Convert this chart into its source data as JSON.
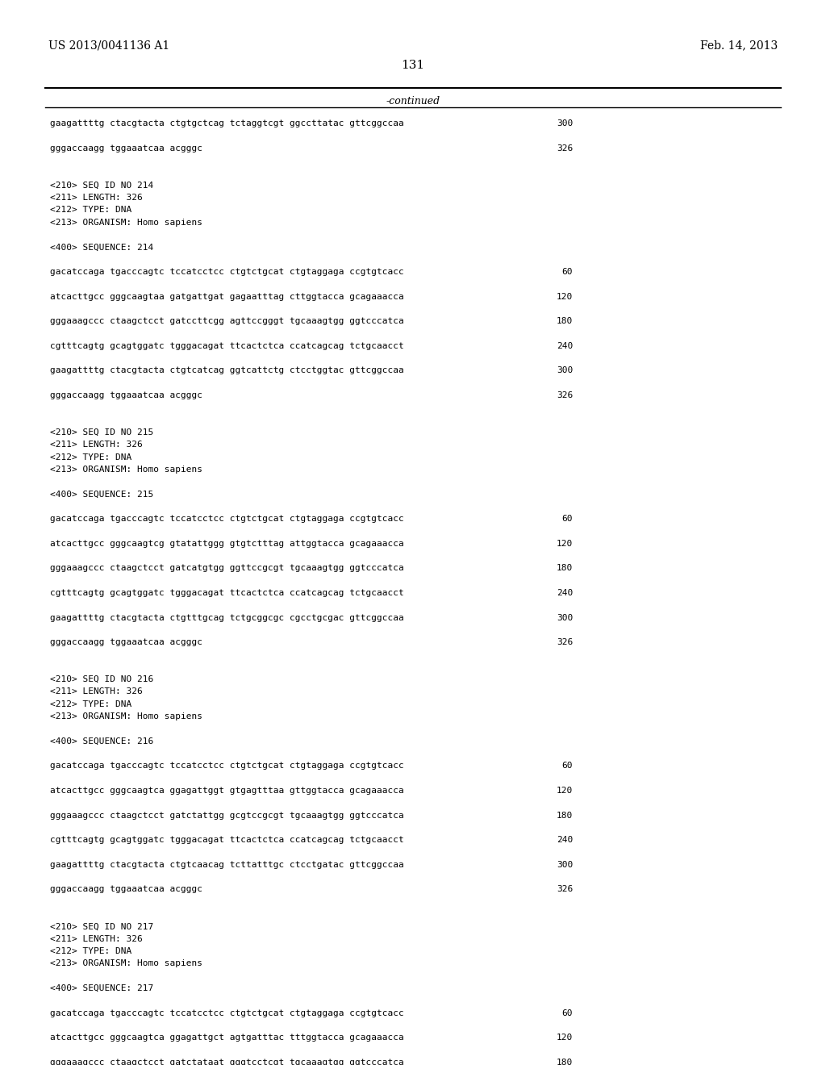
{
  "header_left": "US 2013/0041136 A1",
  "header_right": "Feb. 14, 2013",
  "page_number": "131",
  "continued_label": "-continued",
  "background_color": "#ffffff",
  "text_color": "#000000",
  "font_size": 8.5,
  "mono_font_size": 8.0,
  "lines": [
    {
      "text": "gaagattttg ctacgtacta ctgtgctcag tctaggtcgt ggccttatac gttcggccaa",
      "num": "300",
      "type": "seq"
    },
    {
      "text": "",
      "num": "",
      "type": "blank"
    },
    {
      "text": "gggaccaagg tggaaatcaa acgggc",
      "num": "326",
      "type": "seq"
    },
    {
      "text": "",
      "num": "",
      "type": "blank"
    },
    {
      "text": "",
      "num": "",
      "type": "blank"
    },
    {
      "text": "<210> SEQ ID NO 214",
      "num": "",
      "type": "meta"
    },
    {
      "text": "<211> LENGTH: 326",
      "num": "",
      "type": "meta"
    },
    {
      "text": "<212> TYPE: DNA",
      "num": "",
      "type": "meta"
    },
    {
      "text": "<213> ORGANISM: Homo sapiens",
      "num": "",
      "type": "meta"
    },
    {
      "text": "",
      "num": "",
      "type": "blank"
    },
    {
      "text": "<400> SEQUENCE: 214",
      "num": "",
      "type": "meta"
    },
    {
      "text": "",
      "num": "",
      "type": "blank"
    },
    {
      "text": "gacatccaga tgacccagtc tccatcctcc ctgtctgcat ctgtaggaga ccgtgtcacc",
      "num": "60",
      "type": "seq"
    },
    {
      "text": "",
      "num": "",
      "type": "blank"
    },
    {
      "text": "atcacttgcc gggcaagtaa gatgattgat gagaatttag cttggtacca gcagaaacca",
      "num": "120",
      "type": "seq"
    },
    {
      "text": "",
      "num": "",
      "type": "blank"
    },
    {
      "text": "gggaaagccc ctaagctcct gatccttcgg agttccgggt tgcaaagtgg ggtcccatca",
      "num": "180",
      "type": "seq"
    },
    {
      "text": "",
      "num": "",
      "type": "blank"
    },
    {
      "text": "cgtttcagtg gcagtggatc tgggacagat ttcactctca ccatcagcag tctgcaacct",
      "num": "240",
      "type": "seq"
    },
    {
      "text": "",
      "num": "",
      "type": "blank"
    },
    {
      "text": "gaagattttg ctacgtacta ctgtcatcag ggtcattctg ctcctggtac gttcggccaa",
      "num": "300",
      "type": "seq"
    },
    {
      "text": "",
      "num": "",
      "type": "blank"
    },
    {
      "text": "gggaccaagg tggaaatcaa acgggc",
      "num": "326",
      "type": "seq"
    },
    {
      "text": "",
      "num": "",
      "type": "blank"
    },
    {
      "text": "",
      "num": "",
      "type": "blank"
    },
    {
      "text": "<210> SEQ ID NO 215",
      "num": "",
      "type": "meta"
    },
    {
      "text": "<211> LENGTH: 326",
      "num": "",
      "type": "meta"
    },
    {
      "text": "<212> TYPE: DNA",
      "num": "",
      "type": "meta"
    },
    {
      "text": "<213> ORGANISM: Homo sapiens",
      "num": "",
      "type": "meta"
    },
    {
      "text": "",
      "num": "",
      "type": "blank"
    },
    {
      "text": "<400> SEQUENCE: 215",
      "num": "",
      "type": "meta"
    },
    {
      "text": "",
      "num": "",
      "type": "blank"
    },
    {
      "text": "gacatccaga tgacccagtc tccatcctcc ctgtctgcat ctgtaggaga ccgtgtcacc",
      "num": "60",
      "type": "seq"
    },
    {
      "text": "",
      "num": "",
      "type": "blank"
    },
    {
      "text": "atcacttgcc gggcaagtcg gtatattggg gtgtctttag attggtacca gcagaaacca",
      "num": "120",
      "type": "seq"
    },
    {
      "text": "",
      "num": "",
      "type": "blank"
    },
    {
      "text": "gggaaagccc ctaagctcct gatcatgtgg ggttccgcgt tgcaaagtgg ggtcccatca",
      "num": "180",
      "type": "seq"
    },
    {
      "text": "",
      "num": "",
      "type": "blank"
    },
    {
      "text": "cgtttcagtg gcagtggatc tgggacagat ttcactctca ccatcagcag tctgcaacct",
      "num": "240",
      "type": "seq"
    },
    {
      "text": "",
      "num": "",
      "type": "blank"
    },
    {
      "text": "gaagattttg ctacgtacta ctgtttgcag tctgcggcgc cgcctgcgac gttcggccaa",
      "num": "300",
      "type": "seq"
    },
    {
      "text": "",
      "num": "",
      "type": "blank"
    },
    {
      "text": "gggaccaagg tggaaatcaa acgggc",
      "num": "326",
      "type": "seq"
    },
    {
      "text": "",
      "num": "",
      "type": "blank"
    },
    {
      "text": "",
      "num": "",
      "type": "blank"
    },
    {
      "text": "<210> SEQ ID NO 216",
      "num": "",
      "type": "meta"
    },
    {
      "text": "<211> LENGTH: 326",
      "num": "",
      "type": "meta"
    },
    {
      "text": "<212> TYPE: DNA",
      "num": "",
      "type": "meta"
    },
    {
      "text": "<213> ORGANISM: Homo sapiens",
      "num": "",
      "type": "meta"
    },
    {
      "text": "",
      "num": "",
      "type": "blank"
    },
    {
      "text": "<400> SEQUENCE: 216",
      "num": "",
      "type": "meta"
    },
    {
      "text": "",
      "num": "",
      "type": "blank"
    },
    {
      "text": "gacatccaga tgacccagtc tccatcctcc ctgtctgcat ctgtaggaga ccgtgtcacc",
      "num": "60",
      "type": "seq"
    },
    {
      "text": "",
      "num": "",
      "type": "blank"
    },
    {
      "text": "atcacttgcc gggcaagtca ggagattggt gtgagtttaa gttggtacca gcagaaacca",
      "num": "120",
      "type": "seq"
    },
    {
      "text": "",
      "num": "",
      "type": "blank"
    },
    {
      "text": "gggaaagccc ctaagctcct gatctattgg gcgtccgcgt tgcaaagtgg ggtcccatca",
      "num": "180",
      "type": "seq"
    },
    {
      "text": "",
      "num": "",
      "type": "blank"
    },
    {
      "text": "cgtttcagtg gcagtggatc tgggacagat ttcactctca ccatcagcag tctgcaacct",
      "num": "240",
      "type": "seq"
    },
    {
      "text": "",
      "num": "",
      "type": "blank"
    },
    {
      "text": "gaagattttg ctacgtacta ctgtcaacag tcttatttgc ctcctgatac gttcggccaa",
      "num": "300",
      "type": "seq"
    },
    {
      "text": "",
      "num": "",
      "type": "blank"
    },
    {
      "text": "gggaccaagg tggaaatcaa acgggc",
      "num": "326",
      "type": "seq"
    },
    {
      "text": "",
      "num": "",
      "type": "blank"
    },
    {
      "text": "",
      "num": "",
      "type": "blank"
    },
    {
      "text": "<210> SEQ ID NO 217",
      "num": "",
      "type": "meta"
    },
    {
      "text": "<211> LENGTH: 326",
      "num": "",
      "type": "meta"
    },
    {
      "text": "<212> TYPE: DNA",
      "num": "",
      "type": "meta"
    },
    {
      "text": "<213> ORGANISM: Homo sapiens",
      "num": "",
      "type": "meta"
    },
    {
      "text": "",
      "num": "",
      "type": "blank"
    },
    {
      "text": "<400> SEQUENCE: 217",
      "num": "",
      "type": "meta"
    },
    {
      "text": "",
      "num": "",
      "type": "blank"
    },
    {
      "text": "gacatccaga tgacccagtc tccatcctcc ctgtctgcat ctgtaggaga ccgtgtcacc",
      "num": "60",
      "type": "seq"
    },
    {
      "text": "",
      "num": "",
      "type": "blank"
    },
    {
      "text": "atcacttgcc gggcaagtca ggagattgct agtgatttac tttggtacca gcagaaacca",
      "num": "120",
      "type": "seq"
    },
    {
      "text": "",
      "num": "",
      "type": "blank"
    },
    {
      "text": "gggaaagccc ctaagctcct gatctataat gggtcctcgt tgcaaagtgg ggtcccatca",
      "num": "180",
      "type": "seq"
    }
  ]
}
